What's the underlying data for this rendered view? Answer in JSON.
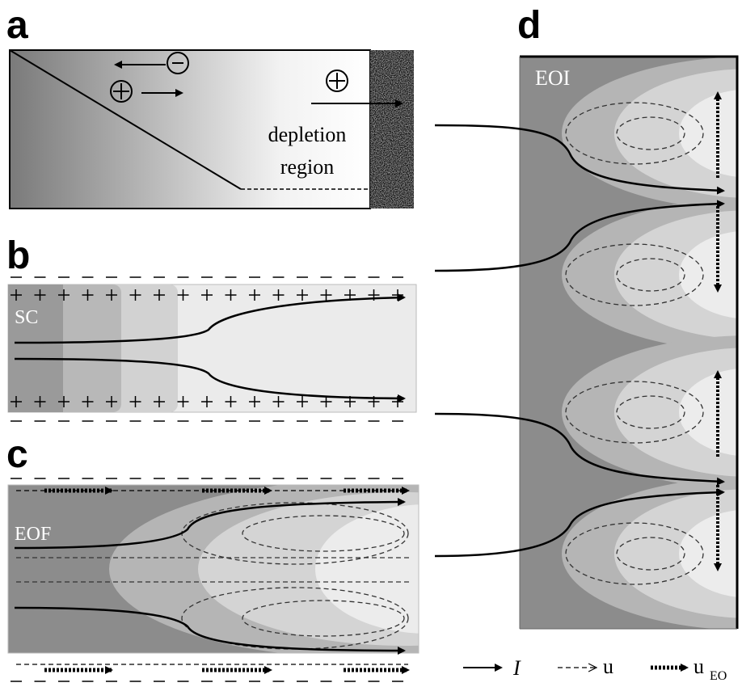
{
  "panels": [
    {
      "label": "a",
      "texts": [
        "depletion",
        "region"
      ]
    },
    {
      "label": "b",
      "name": "SC"
    },
    {
      "label": "c",
      "name": "EOF"
    },
    {
      "label": "d",
      "name": "EOI"
    }
  ],
  "legend": [
    {
      "symbol": "I"
    },
    {
      "symbol": "u"
    },
    {
      "symbol": "u",
      "subscript": "EO"
    }
  ]
}
